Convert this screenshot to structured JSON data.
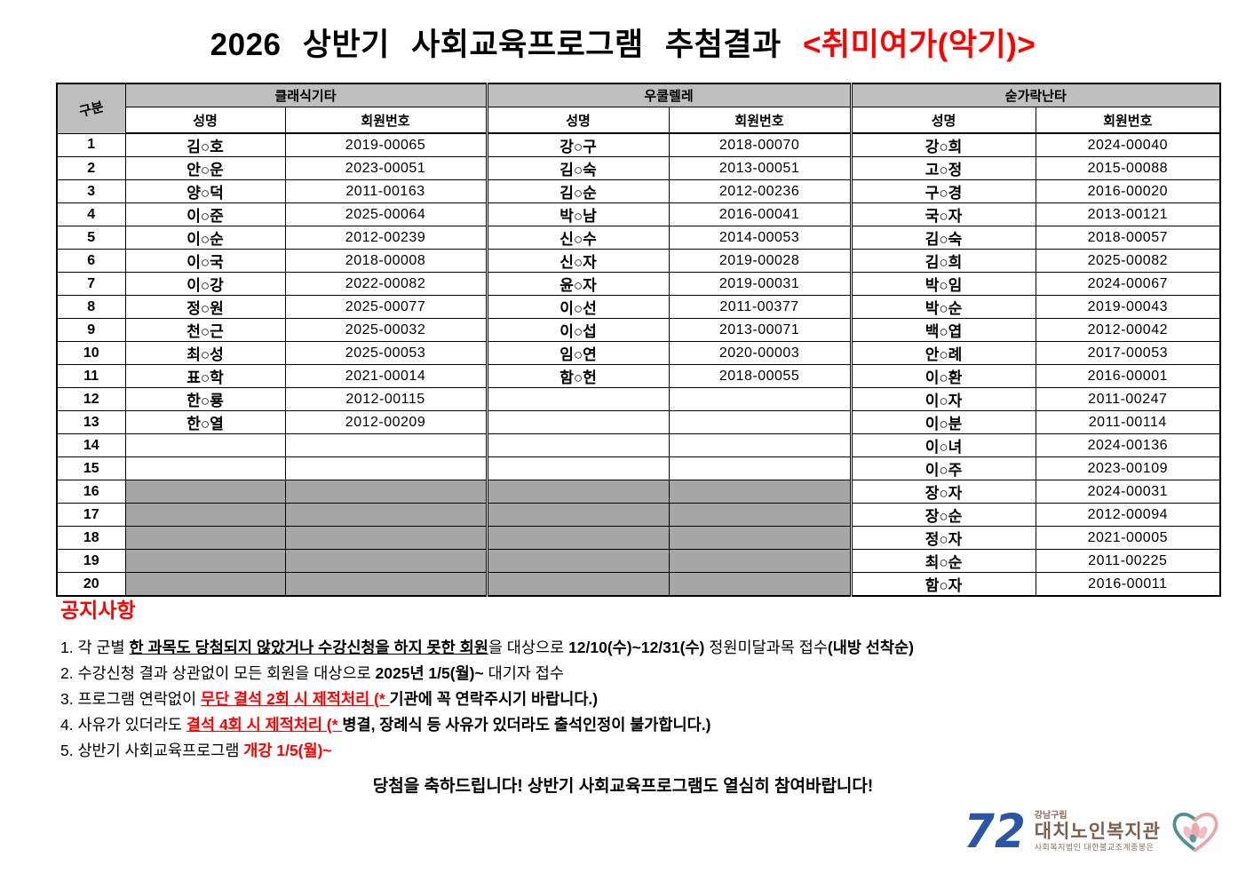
{
  "title": {
    "main": "2026 상반기 사회교육프로그램 추첨결과",
    "highlight": "<취미여가(악기)>"
  },
  "table": {
    "corner_label": "구분",
    "name_header": "성명",
    "member_header": "회원번호",
    "row_count": 20,
    "groups": [
      {
        "label": "클래식기타",
        "gray_from": 16,
        "rows": [
          {
            "name": "김○호",
            "num": "2019-00065"
          },
          {
            "name": "안○운",
            "num": "2023-00051"
          },
          {
            "name": "양○덕",
            "num": "2011-00163"
          },
          {
            "name": "이○준",
            "num": "2025-00064"
          },
          {
            "name": "이○순",
            "num": "2012-00239"
          },
          {
            "name": "이○국",
            "num": "2018-00008"
          },
          {
            "name": "이○강",
            "num": "2022-00082"
          },
          {
            "name": "정○원",
            "num": "2025-00077"
          },
          {
            "name": "천○근",
            "num": "2025-00032"
          },
          {
            "name": "최○성",
            "num": "2025-00053"
          },
          {
            "name": "표○학",
            "num": "2021-00014"
          },
          {
            "name": "한○룡",
            "num": "2012-00115"
          },
          {
            "name": "한○열",
            "num": "2012-00209"
          }
        ]
      },
      {
        "label": "우쿨렐레",
        "gray_from": 16,
        "rows": [
          {
            "name": "강○구",
            "num": "2018-00070"
          },
          {
            "name": "김○숙",
            "num": "2013-00051"
          },
          {
            "name": "김○순",
            "num": "2012-00236"
          },
          {
            "name": "박○남",
            "num": "2016-00041"
          },
          {
            "name": "신○수",
            "num": "2014-00053"
          },
          {
            "name": "신○자",
            "num": "2019-00028"
          },
          {
            "name": "윤○자",
            "num": "2019-00031"
          },
          {
            "name": "이○선",
            "num": "2011-00377"
          },
          {
            "name": "이○섭",
            "num": "2013-00071"
          },
          {
            "name": "임○연",
            "num": "2020-00003"
          },
          {
            "name": "함○헌",
            "num": "2018-00055"
          }
        ]
      },
      {
        "label": "숟가락난타",
        "gray_from": 0,
        "rows": [
          {
            "name": "강○희",
            "num": "2024-00040"
          },
          {
            "name": "고○정",
            "num": "2015-00088"
          },
          {
            "name": "구○경",
            "num": "2016-00020"
          },
          {
            "name": "국○자",
            "num": "2013-00121"
          },
          {
            "name": "김○숙",
            "num": "2018-00057"
          },
          {
            "name": "김○희",
            "num": "2025-00082"
          },
          {
            "name": "박○임",
            "num": "2024-00067"
          },
          {
            "name": "박○순",
            "num": "2019-00043"
          },
          {
            "name": "백○엽",
            "num": "2012-00042"
          },
          {
            "name": "안○례",
            "num": "2017-00053"
          },
          {
            "name": "이○환",
            "num": "2016-00001"
          },
          {
            "name": "이○자",
            "num": "2011-00247"
          },
          {
            "name": "이○분",
            "num": "2011-00114"
          },
          {
            "name": "이○녀",
            "num": "2024-00136"
          },
          {
            "name": "이○주",
            "num": "2023-00109"
          },
          {
            "name": "장○자",
            "num": "2024-00031"
          },
          {
            "name": "장○순",
            "num": "2012-00094"
          },
          {
            "name": "정○자",
            "num": "2021-00005"
          },
          {
            "name": "최○순",
            "num": "2011-00225"
          },
          {
            "name": "함○자",
            "num": "2016-00011"
          }
        ]
      }
    ]
  },
  "notice": {
    "heading": "공지사항",
    "items": [
      [
        {
          "t": "1.  각 군별 ",
          "s": "n"
        },
        {
          "t": "한 과목도 당첨되지 않았거나 수강신청을 하지 못한 회원",
          "s": "bu"
        },
        {
          "t": "을 대상으로 ",
          "s": "n"
        },
        {
          "t": "12/10(수)~12/31(수)",
          "s": "b"
        },
        {
          "t": " 정원미달과목 접수",
          "s": "n"
        },
        {
          "t": "(내방 선착순)",
          "s": "b"
        }
      ],
      [
        {
          "t": "2.  수강신청 결과 상관없이 모든 회원을 대상으로 ",
          "s": "n"
        },
        {
          "t": "2025년 1/5(월)~",
          "s": "b"
        },
        {
          "t": " 대기자 접수",
          "s": "n"
        }
      ],
      [
        {
          "t": "3.  프로그램 연락없이 ",
          "s": "n"
        },
        {
          "t": "무단 결석 2회 시 제적처리 (* ",
          "s": "ru"
        },
        {
          "t": "기관에 꼭 연락주시기 바랍니다.)",
          "s": "b"
        }
      ],
      [
        {
          "t": "4.  사유가 있더라도 ",
          "s": "n"
        },
        {
          "t": "결석 4회 시 제적처리 (* ",
          "s": "ru"
        },
        {
          "t": "병결, 장례식 등 사유가 있더라도 출석인정이 불가합니다.)",
          "s": "b"
        }
      ],
      [
        {
          "t": "5.  상반기 사회교육프로그램 ",
          "s": "n"
        },
        {
          "t": "개강 1/5(월)~",
          "s": "rb"
        }
      ]
    ]
  },
  "closing": "당첨을 축하드립니다!  상반기 사회교육프로그램도 열심히 참여바랍니다!",
  "logo": {
    "mark": "72",
    "top": "강남구립",
    "name": "대치노인복지관",
    "bottom": "사회복지법인 대한불교조계종봉은"
  },
  "colors": {
    "accent_red": "#FF0000",
    "header_gray": "#BFBFBF",
    "blocked_gray": "#A6A6A6",
    "logo_blue": "#2B55A5",
    "logo_brown": "#7C5F4E",
    "heart_teal": "#4E8F96",
    "heart_pink": "#E9A6A6"
  }
}
